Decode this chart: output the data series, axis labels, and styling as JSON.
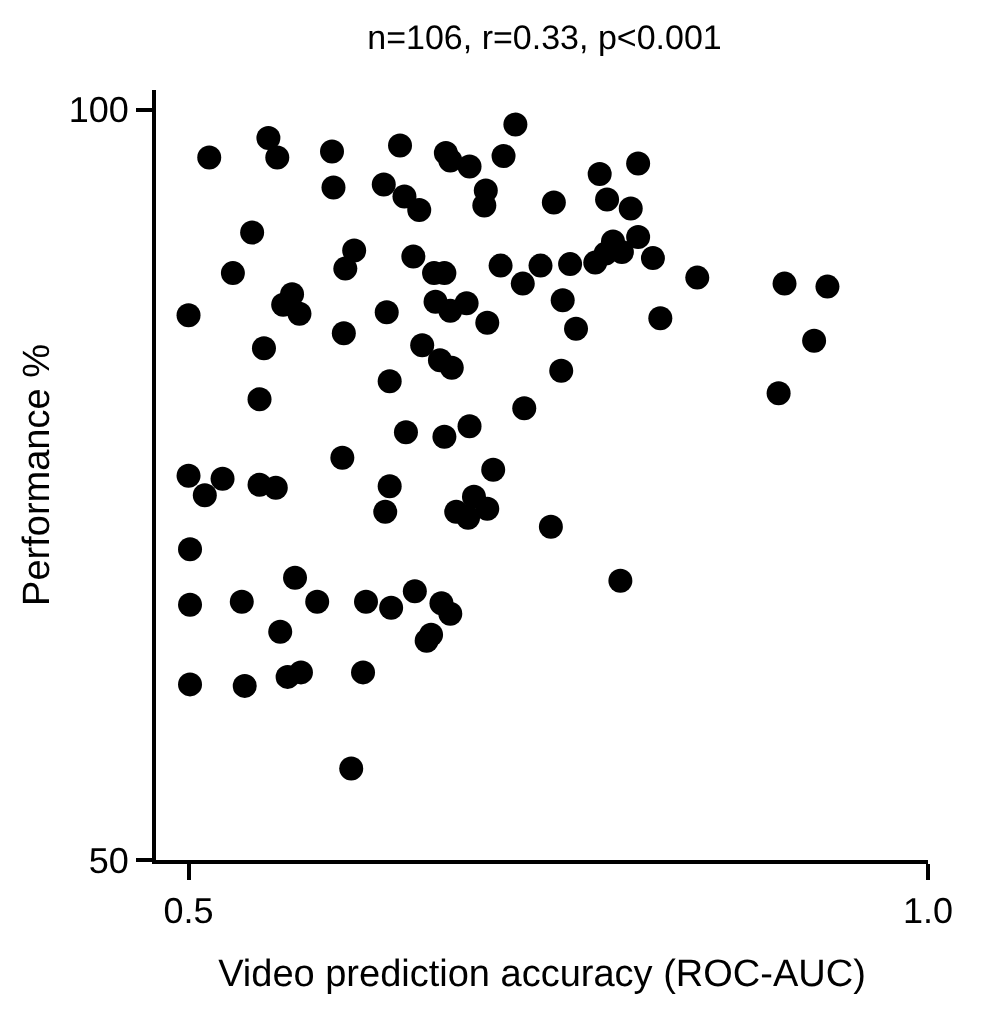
{
  "chart_data": {
    "type": "scatter",
    "title": "n=106, r=0.33, p<0.001",
    "xlabel": "Video prediction accuracy (ROC-AUC)",
    "ylabel": "Performance %",
    "xlim": [
      0.478,
      1.0
    ],
    "xticks": [
      {
        "value": 0.5,
        "label": "0.5"
      },
      {
        "value": 1.0,
        "label": "1.0"
      }
    ],
    "ylim": [
      50,
      101.3
    ],
    "yticks": [
      50,
      100
    ],
    "marker": "circle",
    "series": [
      {
        "color": "#000000",
        "x": [
          0.514,
          0.554,
          0.56,
          0.597,
          0.643,
          0.674,
          0.677,
          0.69,
          0.713,
          0.721,
          0.598,
          0.632,
          0.646,
          0.656,
          0.701,
          0.7,
          0.747,
          0.543,
          0.612,
          0.606,
          0.53,
          0.652,
          0.666,
          0.673,
          0.711,
          0.726,
          0.738,
          0.57,
          0.564,
          0.575,
          0.5,
          0.634,
          0.667,
          0.677,
          0.688,
          0.702,
          0.753,
          0.605,
          0.551,
          0.658,
          0.67,
          0.678,
          0.752,
          0.636,
          0.548,
          0.727,
          0.647,
          0.673,
          0.69,
          0.604,
          0.706,
          0.5,
          0.511,
          0.523,
          0.548,
          0.559,
          0.636,
          0.633,
          0.681,
          0.693,
          0.689,
          0.702,
          0.745,
          0.501,
          0.572,
          0.501,
          0.536,
          0.587,
          0.62,
          0.637,
          0.653,
          0.671,
          0.677,
          0.562,
          0.664,
          0.661,
          0.501,
          0.538,
          0.567,
          0.576,
          0.618,
          0.61,
          0.778,
          0.804,
          0.783,
          0.799,
          0.787,
          0.804,
          0.782,
          0.793,
          0.775,
          0.814,
          0.758,
          0.844,
          0.903,
          0.932,
          0.762,
          0.819,
          0.923,
          0.899,
          0.792
        ],
        "values": [
          96.8,
          98.1,
          96.8,
          97.2,
          97.6,
          97.1,
          96.6,
          96.2,
          96.9,
          99.0,
          94.8,
          95.0,
          94.2,
          93.3,
          94.6,
          93.6,
          93.8,
          91.8,
          90.6,
          89.4,
          89.1,
          90.2,
          89.1,
          89.1,
          89.6,
          88.4,
          89.6,
          87.7,
          87.0,
          86.4,
          86.3,
          86.5,
          87.2,
          86.6,
          87.1,
          85.8,
          87.3,
          85.1,
          84.1,
          84.3,
          83.3,
          82.8,
          82.6,
          81.9,
          80.7,
          80.1,
          78.5,
          78.2,
          78.9,
          76.8,
          76.0,
          75.6,
          74.3,
          75.4,
          75.0,
          74.8,
          74.9,
          73.2,
          73.2,
          74.2,
          72.8,
          73.4,
          72.2,
          70.7,
          68.8,
          67.0,
          67.2,
          67.2,
          67.2,
          66.8,
          67.9,
          67.1,
          66.4,
          65.2,
          65.0,
          64.6,
          61.7,
          61.6,
          62.2,
          62.5,
          62.5,
          56.1,
          95.7,
          96.4,
          94.0,
          93.4,
          91.2,
          91.5,
          90.4,
          90.5,
          89.8,
          90.1,
          89.7,
          88.8,
          88.4,
          88.2,
          85.4,
          86.1,
          84.6,
          81.1,
          68.6
        ]
      }
    ]
  }
}
